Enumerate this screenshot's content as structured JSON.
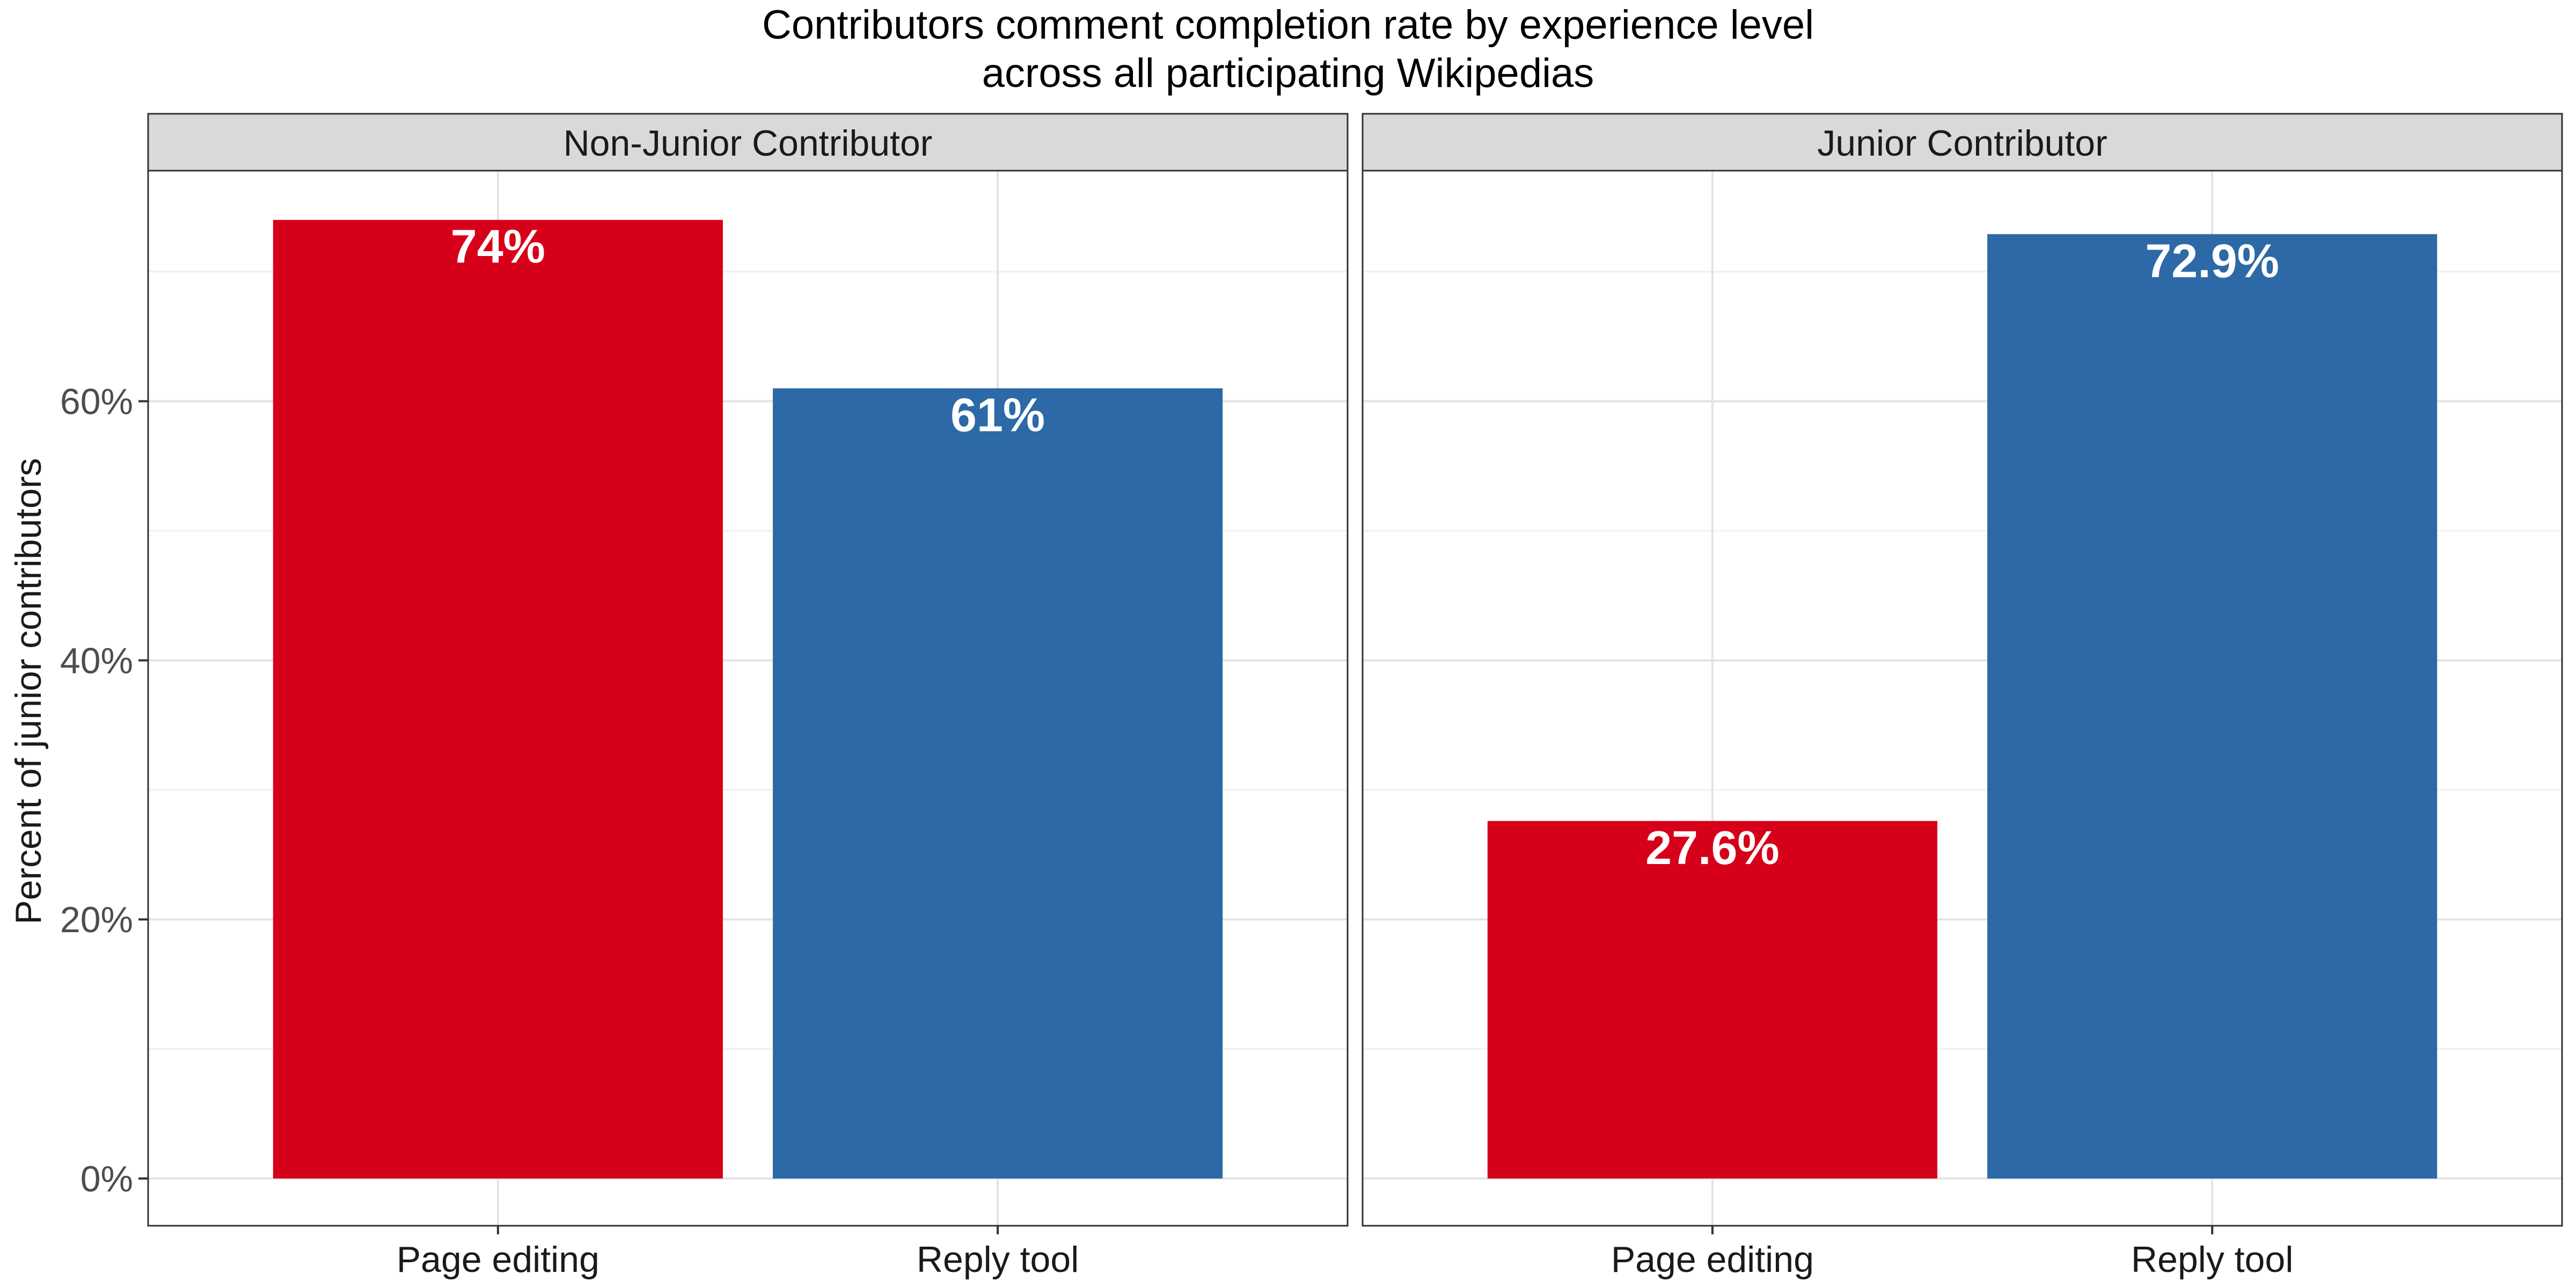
{
  "chart_data": {
    "type": "bar",
    "title_lines": [
      "Contributors comment completion rate by experience level",
      "across all participating Wikipedias"
    ],
    "xlabel": "",
    "ylabel": "Percent of junior contributors",
    "ylim": [
      0,
      0.778
    ],
    "yticks": [
      0,
      0.2,
      0.4,
      0.6
    ],
    "ytick_labels": [
      "0%",
      "20%",
      "40%",
      "60%"
    ],
    "grid": true,
    "legend": "none",
    "categories": [
      "Page editing",
      "Reply tool"
    ],
    "colors": {
      "Page editing": "#D7001A",
      "Reply tool": "#2C69A6"
    },
    "panels": [
      {
        "name": "Non-Junior Contributor",
        "values": [
          0.74,
          0.61
        ],
        "labels": [
          "74%",
          "61%"
        ]
      },
      {
        "name": "Junior Contributor",
        "values": [
          0.276,
          0.729
        ],
        "labels": [
          "27.6%",
          "72.9%"
        ]
      }
    ]
  }
}
